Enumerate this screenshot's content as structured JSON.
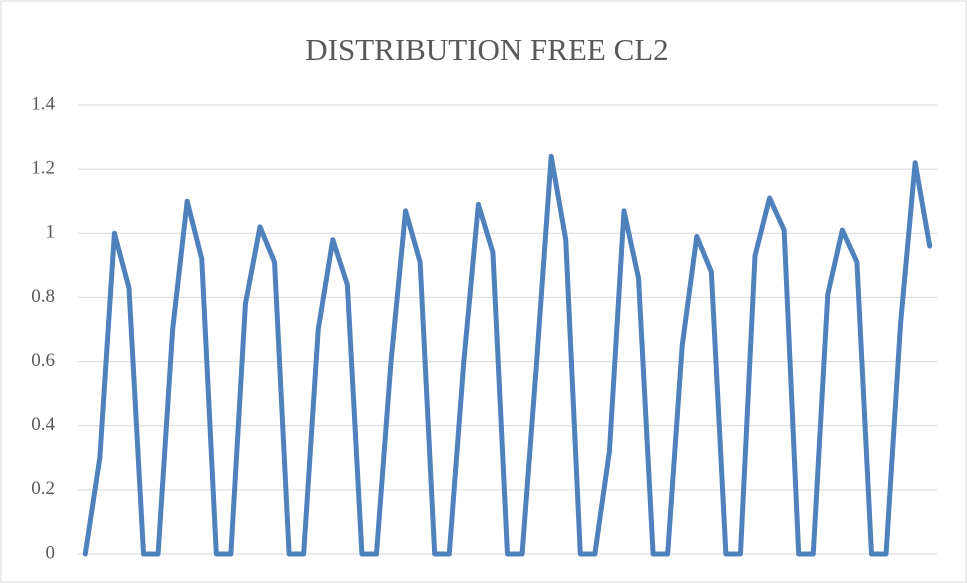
{
  "chart_data": {
    "type": "line",
    "title": "DISTRIBUTION FREE CL2",
    "categories": [
      null,
      null,
      null,
      null,
      null,
      null,
      null,
      null,
      null,
      null,
      null,
      null,
      null,
      null,
      null,
      null,
      null,
      null,
      null,
      null,
      null,
      null,
      null,
      null,
      null,
      null,
      null,
      null,
      null,
      null,
      null,
      null,
      null,
      null,
      null,
      null,
      null,
      null,
      null,
      null,
      null,
      null,
      null,
      null,
      null,
      null,
      null,
      null,
      null,
      null,
      null,
      null,
      null,
      null,
      null,
      null,
      null,
      null,
      null
    ],
    "series": [
      {
        "name": "CL2",
        "color": "#4f81bd",
        "values": [
          0,
          0.3,
          1.0,
          0.83,
          0,
          0,
          0.7,
          1.1,
          0.92,
          0,
          0,
          0.78,
          1.02,
          0.91,
          0,
          0,
          0.7,
          0.98,
          0.84,
          0,
          0,
          0.6,
          1.07,
          0.91,
          0,
          0,
          0.6,
          1.09,
          0.94,
          0,
          0,
          0.6,
          1.24,
          0.98,
          0,
          0,
          0.32,
          1.07,
          0.86,
          0,
          0,
          0.65,
          0.99,
          0.88,
          0,
          0,
          0.93,
          1.11,
          1.01,
          0,
          0,
          0.81,
          1.01,
          0.91,
          0,
          0,
          0.72,
          1.22,
          0.96
        ]
      }
    ],
    "ylim": [
      0,
      1.4
    ],
    "yticks": [
      0,
      0.2,
      0.4,
      0.6,
      0.8,
      1,
      1.2,
      1.4
    ],
    "grid": true
  }
}
